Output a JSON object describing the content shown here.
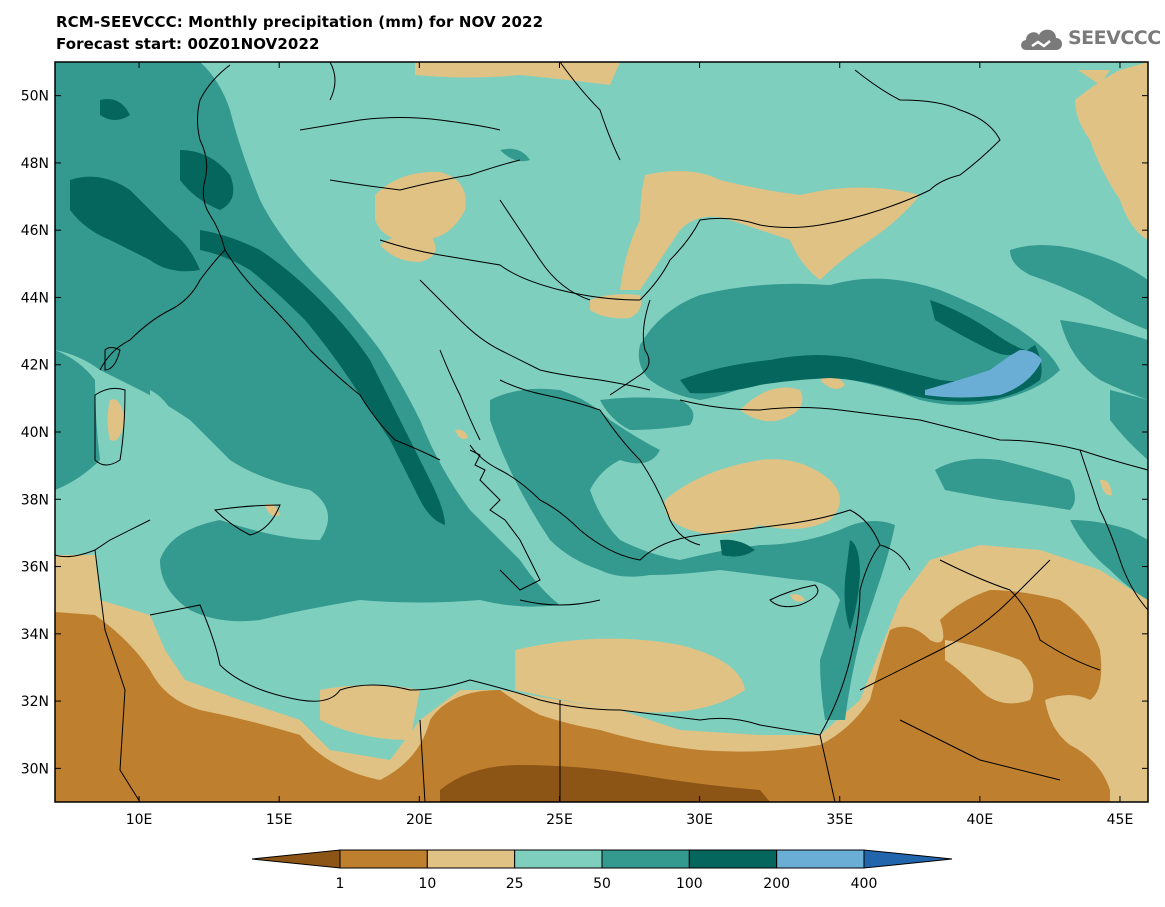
{
  "header": {
    "title": "RCM-SEEVCCC: Monthly precipitation (mm) for NOV 2022",
    "subtitle": "Forecast start: 00Z01NOV2022"
  },
  "logo": {
    "text": "SEEVCCC",
    "icon": "cloud-icon"
  },
  "map": {
    "lon_range": [
      7,
      46
    ],
    "lat_range": [
      29,
      51
    ],
    "lat_labels": [
      "50N",
      "48N",
      "46N",
      "44N",
      "42N",
      "40N",
      "38N",
      "36N",
      "34N",
      "32N",
      "30N"
    ],
    "lon_labels": [
      "10E",
      "15E",
      "20E",
      "25E",
      "30E",
      "35E",
      "40E",
      "45E"
    ]
  },
  "legend": {
    "labels": [
      "1",
      "10",
      "25",
      "50",
      "100",
      "200",
      "400"
    ],
    "colors": [
      "#8c5516",
      "#be7f2e",
      "#dfc284",
      "#7fcfbf",
      "#349a8f",
      "#04665d",
      "#6aaed6",
      "#2166ac"
    ]
  }
}
